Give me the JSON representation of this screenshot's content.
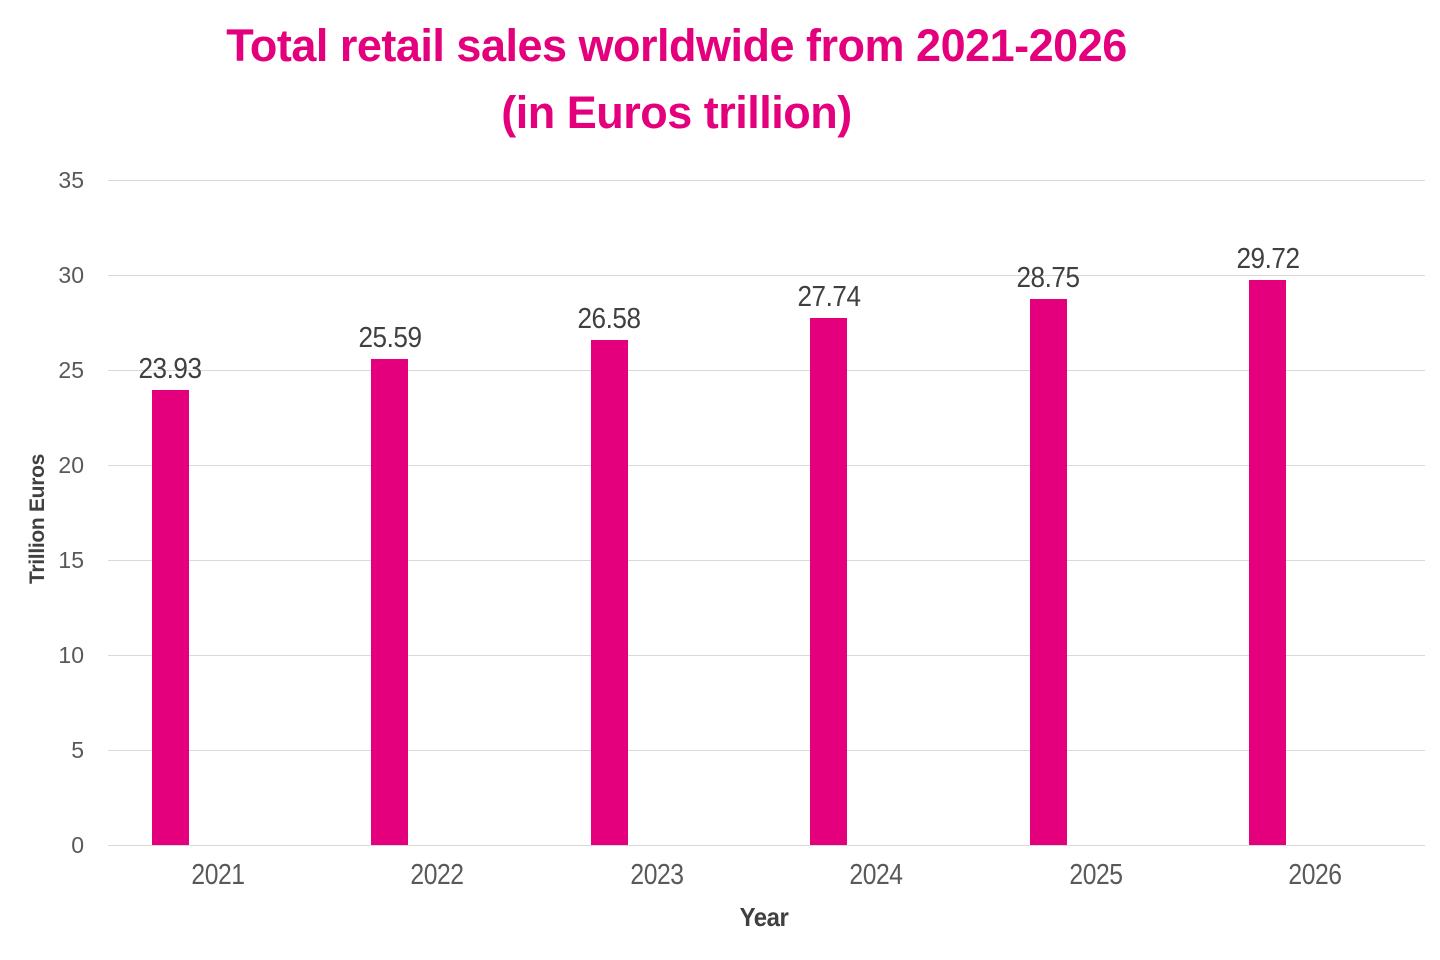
{
  "title": {
    "line1": "Total retail sales worldwide from 2021-2026",
    "line2": "(in Euros trillion)"
  },
  "chart_data": {
    "type": "bar",
    "title": "Total retail sales worldwide from 2021-2026 (in Euros trillion)",
    "categories": [
      "2021",
      "2022",
      "2023",
      "2024",
      "2025",
      "2026"
    ],
    "values": [
      23.93,
      25.59,
      26.58,
      27.74,
      28.75,
      29.72
    ],
    "data_labels": [
      "23.93",
      "25.59",
      "26.58",
      "27.74",
      "28.75",
      "29.72"
    ],
    "xlabel": "Year",
    "ylabel": "Trillion Euros",
    "ylim": [
      0,
      35
    ],
    "yticks": [
      0,
      5,
      10,
      15,
      20,
      25,
      30,
      35
    ],
    "grid": true,
    "legend": false,
    "bar_color": "#E4007C"
  },
  "colors": {
    "accent": "#E4007C",
    "title_text": "#E4007C",
    "tick_label": "#595959",
    "axis_title": "#404040",
    "value_label": "#404040",
    "gridline": "#D9D9D9",
    "background": "#FFFFFF"
  }
}
